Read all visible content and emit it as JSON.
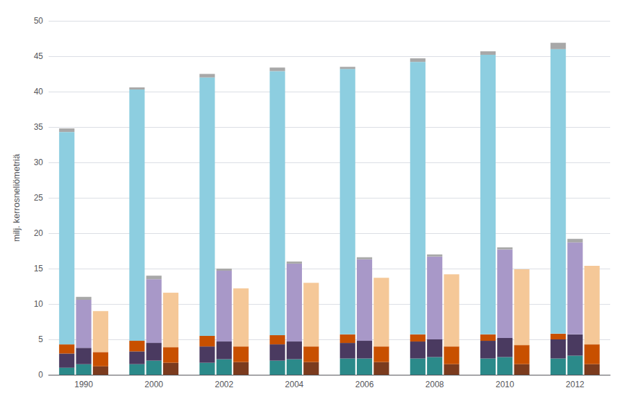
{
  "chart_data": {
    "type": "bar",
    "stacked": true,
    "ylabel": "milj. kerrosneliömetriä",
    "categories": [
      1990,
      2000,
      2002,
      2004,
      2006,
      2008,
      2010,
      2012
    ],
    "ylim": [
      0,
      50
    ],
    "yticks": [
      0,
      5,
      10,
      15,
      20,
      25,
      30,
      35,
      40,
      45,
      50
    ],
    "grid": true,
    "bars": [
      {
        "series": [
          {
            "color": "#2B8A8A",
            "values": [
              1.0,
              1.5,
              1.7,
              2.0,
              2.3,
              2.3,
              2.3,
              2.3
            ]
          },
          {
            "color": "#4A3A60",
            "values": [
              2.0,
              1.8,
              2.3,
              2.3,
              2.2,
              2.4,
              2.5,
              2.7
            ]
          },
          {
            "color": "#C85000",
            "values": [
              1.3,
              1.5,
              1.5,
              1.3,
              1.2,
              1.0,
              0.9,
              0.8
            ]
          },
          {
            "color": "#8DCEE0",
            "values": [
              30.0,
              35.5,
              36.5,
              37.3,
              37.5,
              38.5,
              39.5,
              40.2
            ]
          },
          {
            "color": "#A8A8A8",
            "values": [
              0.5,
              0.3,
              0.5,
              0.5,
              0.3,
              0.5,
              0.5,
              0.9
            ]
          }
        ]
      },
      {
        "series": [
          {
            "color": "#2B8A8A",
            "values": [
              1.5,
              2.0,
              2.2,
              2.2,
              2.3,
              2.5,
              2.5,
              2.7
            ]
          },
          {
            "color": "#4A3A60",
            "values": [
              2.3,
              2.5,
              2.5,
              2.5,
              2.5,
              2.5,
              2.7,
              3.0
            ]
          },
          {
            "color": "#A898C8",
            "values": [
              6.8,
              9.0,
              10.0,
              11.0,
              11.5,
              11.7,
              12.5,
              13.0
            ]
          },
          {
            "color": "#A8A8A8",
            "values": [
              0.4,
              0.5,
              0.3,
              0.3,
              0.3,
              0.3,
              0.3,
              0.5
            ]
          }
        ]
      },
      {
        "series": [
          {
            "color": "#7B3B1E",
            "values": [
              1.2,
              1.7,
              1.8,
              1.8,
              1.8,
              1.5,
              1.5,
              1.5
            ]
          },
          {
            "color": "#C85000",
            "values": [
              2.0,
              2.2,
              2.2,
              2.2,
              2.2,
              2.5,
              2.7,
              2.8
            ]
          },
          {
            "color": "#F5C898",
            "values": [
              5.8,
              7.7,
              8.2,
              9.0,
              9.7,
              10.2,
              10.7,
              11.1
            ]
          }
        ]
      }
    ]
  }
}
